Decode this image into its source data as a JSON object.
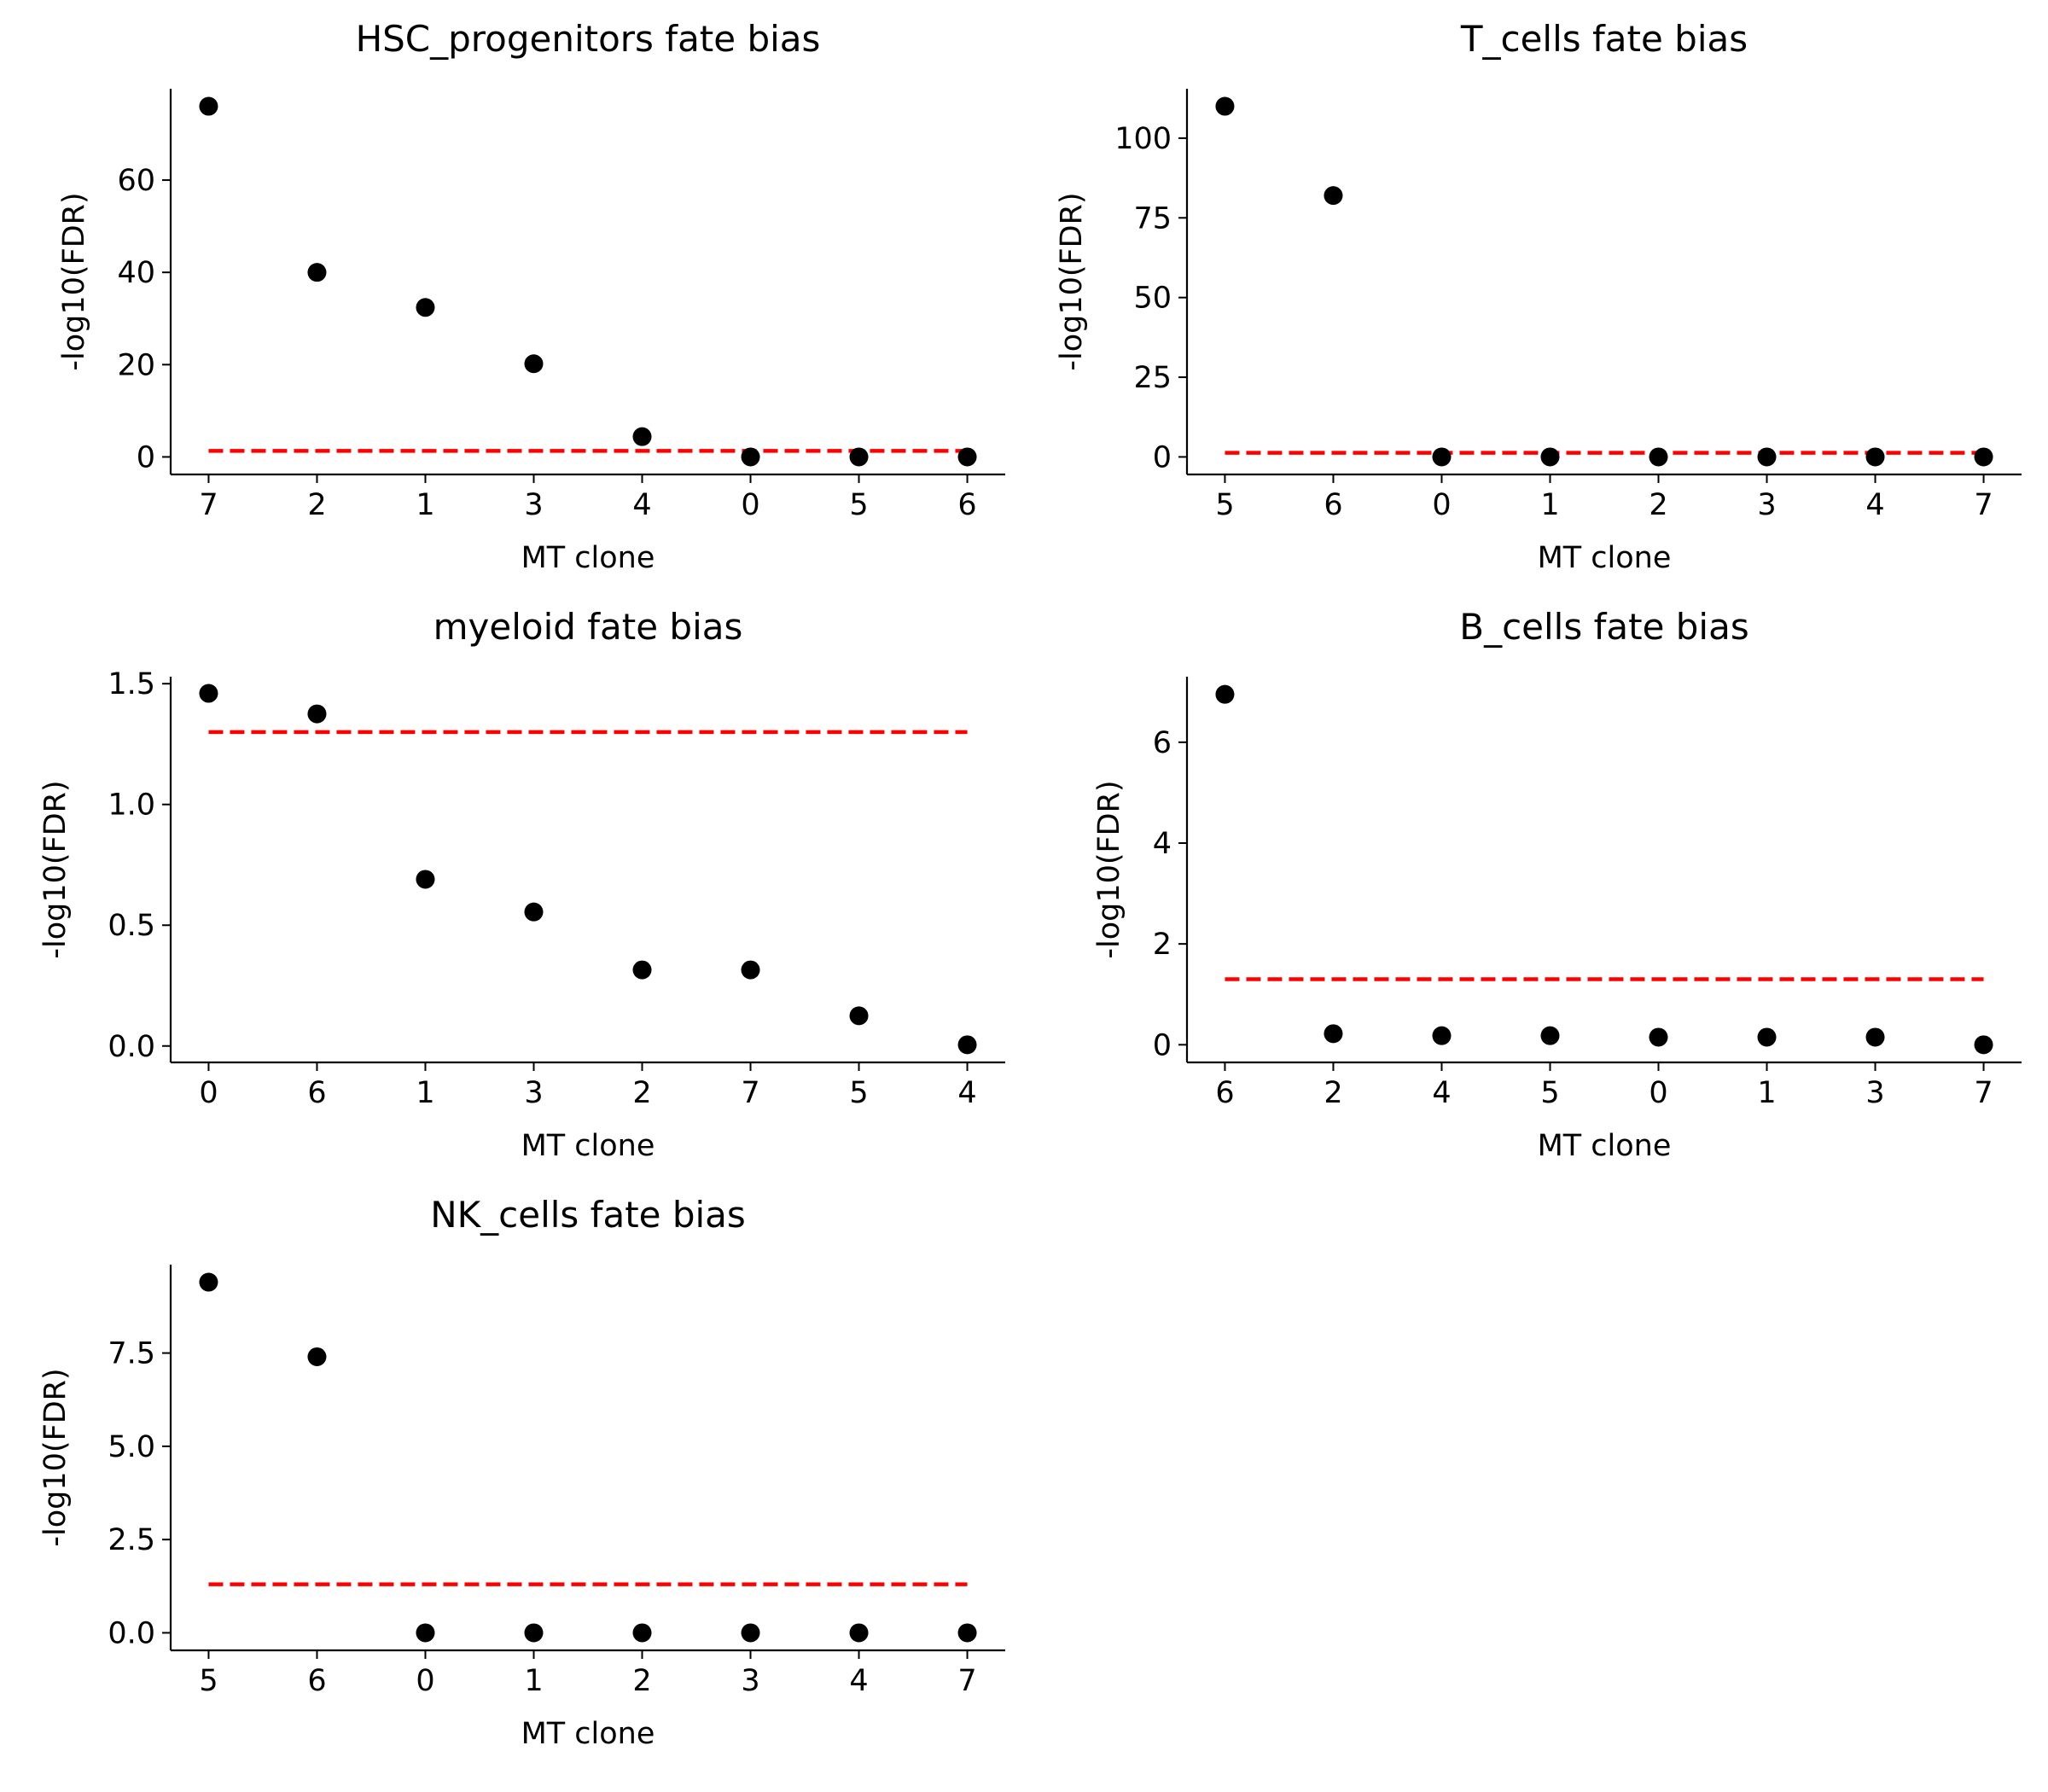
{
  "figure": {
    "colors": {
      "points": "#000000",
      "threshold": "#ff0000",
      "axes": "#000000"
    }
  },
  "chart_data": [
    {
      "type": "scatter",
      "title": "HSC_progenitors fate bias",
      "xlabel": "MT clone",
      "ylabel": "-log10(FDR)",
      "categories": [
        "7",
        "2",
        "1",
        "3",
        "4",
        "0",
        "5",
        "6"
      ],
      "values": [
        76,
        40,
        32.4,
        20.2,
        4.4,
        0,
        0,
        0
      ],
      "threshold": 1.3,
      "ylim": [
        -3.8,
        79.8
      ],
      "yticks": [
        0,
        20,
        40,
        60
      ],
      "ytick_labels": [
        "0",
        "20",
        "40",
        "60"
      ],
      "grid": false,
      "legend": "none"
    },
    {
      "type": "scatter",
      "title": "T_cells fate bias",
      "xlabel": "MT clone",
      "ylabel": "-log10(FDR)",
      "categories": [
        "5",
        "6",
        "0",
        "1",
        "2",
        "3",
        "4",
        "7"
      ],
      "values": [
        110,
        82,
        0,
        0,
        0,
        0,
        0,
        0
      ],
      "threshold": 1.3,
      "ylim": [
        -5.5,
        115.5
      ],
      "yticks": [
        0,
        25,
        50,
        75,
        100
      ],
      "ytick_labels": [
        "0",
        "25",
        "50",
        "75",
        "100"
      ],
      "grid": false,
      "legend": "none"
    },
    {
      "type": "scatter",
      "title": "myeloid fate bias",
      "xlabel": "MT clone",
      "ylabel": "-log10(FDR)",
      "categories": [
        "0",
        "6",
        "1",
        "3",
        "2",
        "7",
        "5",
        "4"
      ],
      "values": [
        1.46,
        1.375,
        0.69,
        0.555,
        0.315,
        0.315,
        0.125,
        0.005
      ],
      "threshold": 1.3,
      "ylim": [
        -0.068,
        1.529
      ],
      "yticks": [
        0,
        0.5,
        1.0,
        1.5
      ],
      "ytick_labels": [
        "0.0",
        "0.5",
        "1.0",
        "1.5"
      ],
      "grid": false,
      "legend": "none"
    },
    {
      "type": "scatter",
      "title": "B_cells fate bias",
      "xlabel": "MT clone",
      "ylabel": "-log10(FDR)",
      "categories": [
        "6",
        "2",
        "4",
        "5",
        "0",
        "1",
        "3",
        "7"
      ],
      "values": [
        6.95,
        0.22,
        0.18,
        0.18,
        0.15,
        0.15,
        0.15,
        0.0
      ],
      "threshold": 1.3,
      "ylim": [
        -0.35,
        7.3
      ],
      "yticks": [
        0,
        2,
        4,
        6
      ],
      "ytick_labels": [
        "0",
        "2",
        "4",
        "6"
      ],
      "grid": false,
      "legend": "none"
    },
    {
      "type": "scatter",
      "title": "NK_cells fate bias",
      "xlabel": "MT clone",
      "ylabel": "-log10(FDR)",
      "categories": [
        "5",
        "6",
        "0",
        "1",
        "2",
        "3",
        "4",
        "7"
      ],
      "values": [
        9.4,
        7.4,
        0,
        0,
        0,
        0,
        0,
        0
      ],
      "threshold": 1.3,
      "ylim": [
        -0.47,
        9.87
      ],
      "yticks": [
        0,
        2.5,
        5.0,
        7.5
      ],
      "ytick_labels": [
        "0.0",
        "2.5",
        "5.0",
        "7.5"
      ],
      "grid": false,
      "legend": "none"
    }
  ]
}
